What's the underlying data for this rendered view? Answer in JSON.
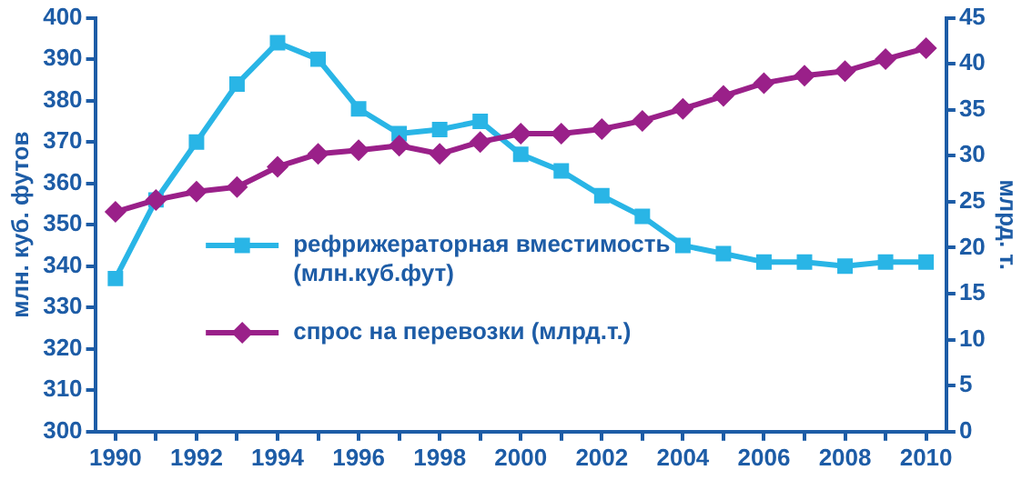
{
  "chart_data": {
    "type": "line",
    "x": [
      1990,
      1991,
      1992,
      1993,
      1994,
      1995,
      1996,
      1997,
      1998,
      1999,
      2000,
      2001,
      2002,
      2003,
      2004,
      2005,
      2006,
      2007,
      2008,
      2009,
      2010
    ],
    "xlim": [
      1989.5,
      2010.5
    ],
    "xticks": [
      1990,
      {
        "value": 1991,
        "label": null
      },
      1992,
      {
        "value": 1993,
        "label": null
      },
      1994,
      {
        "value": 1995,
        "label": null
      },
      1996,
      {
        "value": 1997,
        "label": null
      },
      1998,
      {
        "value": 1999,
        "label": null
      },
      2000,
      {
        "value": 2001,
        "label": null
      },
      2002,
      {
        "value": 2003,
        "label": null
      },
      2004,
      {
        "value": 2005,
        "label": null
      },
      2006,
      {
        "value": 2007,
        "label": null
      },
      2008,
      {
        "value": 2009,
        "label": null
      },
      2010
    ],
    "ylabel": "млн. куб. футов",
    "y2label": "млрд. т.",
    "ylim": [
      300,
      400
    ],
    "yticks": [
      300,
      310,
      320,
      330,
      340,
      350,
      360,
      370,
      380,
      390,
      400
    ],
    "y2lim": [
      0,
      45
    ],
    "y2ticks": [
      0,
      5,
      10,
      15,
      20,
      25,
      30,
      35,
      40,
      45
    ],
    "grid": false,
    "legend": "bottom",
    "line_style": "solid",
    "series": [
      {
        "name": "рефрижераторная вместимость (млн.куб.фут)",
        "color": "#29b5e6",
        "marker": "square",
        "values": [
          337,
          356,
          370,
          384,
          394,
          390,
          378,
          372,
          373,
          375,
          367,
          363,
          357,
          352,
          345,
          343,
          341,
          341,
          340,
          341,
          341
        ]
      },
      {
        "name": "спрос на перевозки (млрд.т.)",
        "color": "#9a2089",
        "marker": "diamond",
        "axis": "y2",
        "values": [
          23.9,
          25.2,
          26.1,
          26.6,
          28.8,
          30.2,
          30.6,
          31.1,
          30.2,
          31.5,
          32.4,
          32.4,
          32.9,
          33.8,
          35.1,
          36.5,
          37.9,
          38.7,
          39.2,
          40.5,
          41.7
        ]
      }
    ]
  }
}
